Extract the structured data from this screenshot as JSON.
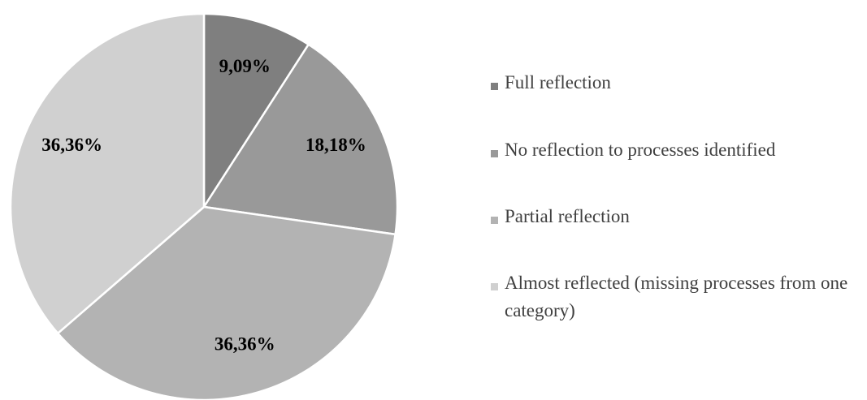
{
  "chart_data": {
    "type": "pie",
    "categories": [
      "Full reflection",
      "No reflection to processes identified",
      "Partial reflection",
      "Almost reflected (missing processes from one category)"
    ],
    "values": [
      9.09,
      18.18,
      36.36,
      36.36
    ],
    "value_labels": [
      "9,09%",
      "18,18%",
      "36,36%",
      "36,36%"
    ],
    "colors": [
      "#7f7f7f",
      "#999999",
      "#b3b3b3",
      "#d0d0d0"
    ],
    "legend": "right"
  }
}
